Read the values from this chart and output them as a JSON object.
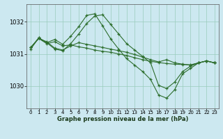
{
  "title": "Graphe pression niveau de la mer (hPa)",
  "background_color": "#cce8f0",
  "grid_color": "#99ccbb",
  "line_color": "#2d6e2d",
  "xlim": [
    -0.5,
    23.5
  ],
  "ylim": [
    1029.3,
    1032.55
  ],
  "yticks": [
    1030,
    1031,
    1032
  ],
  "xticks": [
    0,
    1,
    2,
    3,
    4,
    5,
    6,
    7,
    8,
    9,
    10,
    11,
    12,
    13,
    14,
    15,
    16,
    17,
    18,
    19,
    20,
    21,
    22,
    23
  ],
  "lines": [
    {
      "x": [
        0,
        1,
        2,
        3,
        4,
        5,
        6,
        7,
        8,
        9,
        10,
        11,
        12,
        13,
        14,
        15,
        16,
        17,
        18,
        19,
        20,
        21,
        22,
        23
      ],
      "y": [
        1031.15,
        1031.5,
        1031.35,
        1031.45,
        1031.3,
        1031.55,
        1031.85,
        1032.2,
        1032.25,
        1031.87,
        1031.47,
        1031.15,
        1030.85,
        1030.65,
        1030.45,
        1030.2,
        1029.72,
        1029.62,
        1029.88,
        1030.38,
        1030.55,
        1030.72,
        1030.78,
        1030.72
      ]
    },
    {
      "x": [
        0,
        1,
        2,
        3,
        4,
        5,
        6,
        7,
        8,
        9,
        10,
        11,
        12,
        13,
        14,
        15,
        16,
        17,
        18,
        19,
        20,
        21,
        22,
        23
      ],
      "y": [
        1031.2,
        1031.5,
        1031.35,
        1031.15,
        1031.1,
        1031.32,
        1031.62,
        1031.95,
        1032.18,
        1032.22,
        1031.92,
        1031.62,
        1031.32,
        1031.12,
        1030.92,
        1030.72,
        1030.02,
        1029.92,
        1030.12,
        1030.45,
        1030.62,
        1030.72,
        1030.78,
        1030.72
      ]
    },
    {
      "x": [
        0,
        1,
        2,
        3,
        4,
        5,
        6,
        7,
        8,
        9,
        10,
        11,
        12,
        13,
        14,
        15,
        16,
        17,
        18,
        19,
        20,
        21,
        22,
        23
      ],
      "y": [
        1031.2,
        1031.48,
        1031.32,
        1031.38,
        1031.25,
        1031.28,
        1031.22,
        1031.18,
        1031.12,
        1031.08,
        1031.05,
        1031.0,
        1030.95,
        1030.88,
        1030.82,
        1030.77,
        1030.73,
        1030.7,
        1030.68,
        1030.67,
        1030.66,
        1030.72,
        1030.78,
        1030.72
      ]
    },
    {
      "x": [
        0,
        1,
        2,
        3,
        4,
        5,
        6,
        7,
        8,
        9,
        10,
        11,
        12,
        13,
        14,
        15,
        16,
        17,
        18,
        19,
        20,
        21,
        22,
        23
      ],
      "y": [
        1031.2,
        1031.48,
        1031.38,
        1031.18,
        1031.12,
        1031.25,
        1031.35,
        1031.3,
        1031.25,
        1031.2,
        1031.15,
        1031.1,
        1031.05,
        1030.98,
        1030.9,
        1030.82,
        1030.75,
        1030.82,
        1030.72,
        1030.68,
        1030.65,
        1030.72,
        1030.78,
        1030.72
      ]
    }
  ]
}
